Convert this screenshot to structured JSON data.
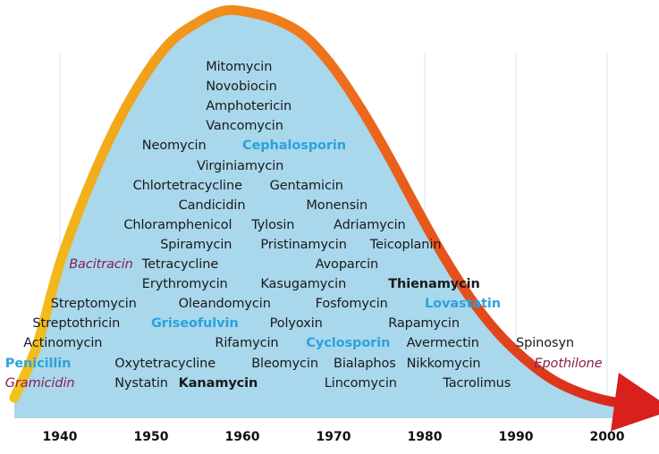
{
  "chart_data": {
    "type": "timeline",
    "title": "",
    "xlabel": "",
    "ylabel": "",
    "x_range": [
      1935,
      2005
    ],
    "x_ticks": [
      "1940",
      "1950",
      "1960",
      "1970",
      "1980",
      "1990",
      "2000"
    ],
    "colors": {
      "area_fill": "#a9d7ec",
      "gridline": "#e3f1f8",
      "curve_start": "#f3c21b",
      "curve_mid": "#f07a1c",
      "curve_end": "#d8201c",
      "blue_label": "#2aa3dc",
      "purple_label": "#8b1d4f"
    },
    "curve": [
      [
        1935.0,
        0.05
      ],
      [
        1937.5,
        0.18
      ],
      [
        1940.0,
        0.38
      ],
      [
        1943.0,
        0.56
      ],
      [
        1946.0,
        0.71
      ],
      [
        1949.0,
        0.83
      ],
      [
        1952.0,
        0.92
      ],
      [
        1955.0,
        0.97
      ],
      [
        1958.0,
        1.0
      ],
      [
        1961.0,
        0.995
      ],
      [
        1964.0,
        0.975
      ],
      [
        1967.0,
        0.935
      ],
      [
        1970.0,
        0.86
      ],
      [
        1973.0,
        0.76
      ],
      [
        1976.0,
        0.645
      ],
      [
        1979.0,
        0.52
      ],
      [
        1982.0,
        0.4
      ],
      [
        1985.0,
        0.295
      ],
      [
        1988.0,
        0.21
      ],
      [
        1991.0,
        0.145
      ],
      [
        1994.0,
        0.095
      ],
      [
        1997.0,
        0.063
      ],
      [
        2000.0,
        0.043
      ],
      [
        2003.5,
        0.032
      ]
    ],
    "antibiotics": [
      {
        "name": "Mitomycin",
        "year": 1956,
        "row": 0,
        "style": "normal"
      },
      {
        "name": "Novobiocin",
        "year": 1956,
        "row": 1,
        "style": "normal"
      },
      {
        "name": "Amphotericin",
        "year": 1956,
        "row": 2,
        "style": "normal"
      },
      {
        "name": "Vancomycin",
        "year": 1956,
        "row": 3,
        "style": "normal"
      },
      {
        "name": "Neomycin",
        "year": 1949,
        "row": 4,
        "style": "normal"
      },
      {
        "name": "Cephalosporin",
        "year": 1960,
        "row": 4,
        "style": "blue"
      },
      {
        "name": "Virginiamycin",
        "year": 1955,
        "row": 5,
        "style": "normal"
      },
      {
        "name": "Chlortetracycline",
        "year": 1948,
        "row": 6,
        "style": "normal"
      },
      {
        "name": "Gentamicin",
        "year": 1963,
        "row": 6,
        "style": "normal"
      },
      {
        "name": "Candicidin",
        "year": 1953,
        "row": 7,
        "style": "normal"
      },
      {
        "name": "Monensin",
        "year": 1967,
        "row": 7,
        "style": "normal"
      },
      {
        "name": "Chloramphenicol",
        "year": 1947,
        "row": 8,
        "style": "normal"
      },
      {
        "name": "Tylosin",
        "year": 1961,
        "row": 8,
        "style": "normal"
      },
      {
        "name": "Adriamycin",
        "year": 1970,
        "row": 8,
        "style": "normal"
      },
      {
        "name": "Spiramycin",
        "year": 1951,
        "row": 9,
        "style": "normal"
      },
      {
        "name": "Pristinamycin",
        "year": 1962,
        "row": 9,
        "style": "normal"
      },
      {
        "name": "Teicoplanin",
        "year": 1974,
        "row": 9,
        "style": "normal"
      },
      {
        "name": "Bacitracin",
        "year": 1941,
        "row": 10,
        "style": "purple"
      },
      {
        "name": "Tetracycline",
        "year": 1949,
        "row": 10,
        "style": "normal"
      },
      {
        "name": "Avoparcin",
        "year": 1968,
        "row": 10,
        "style": "normal"
      },
      {
        "name": "Erythromycin",
        "year": 1949,
        "row": 11,
        "style": "normal"
      },
      {
        "name": "Kasugamycin",
        "year": 1962,
        "row": 11,
        "style": "normal"
      },
      {
        "name": "Thienamycin",
        "year": 1976,
        "row": 11,
        "style": "bold"
      },
      {
        "name": "Streptomycin",
        "year": 1939,
        "row": 12,
        "style": "normal"
      },
      {
        "name": "Oleandomycin",
        "year": 1953,
        "row": 12,
        "style": "normal"
      },
      {
        "name": "Fosfomycin",
        "year": 1968,
        "row": 12,
        "style": "normal"
      },
      {
        "name": "Lovastatin",
        "year": 1980,
        "row": 12,
        "style": "blue"
      },
      {
        "name": "Streptothricin",
        "year": 1937,
        "row": 13,
        "style": "normal"
      },
      {
        "name": "Griseofulvin",
        "year": 1950,
        "row": 13,
        "style": "blue"
      },
      {
        "name": "Polyoxin",
        "year": 1963,
        "row": 13,
        "style": "normal"
      },
      {
        "name": "Rapamycin",
        "year": 1976,
        "row": 13,
        "style": "normal"
      },
      {
        "name": "Actinomycin",
        "year": 1936,
        "row": 14,
        "style": "normal"
      },
      {
        "name": "Rifamycin",
        "year": 1957,
        "row": 14,
        "style": "normal"
      },
      {
        "name": "Cyclosporin",
        "year": 1967,
        "row": 14,
        "style": "blue"
      },
      {
        "name": "Avermectin",
        "year": 1978,
        "row": 14,
        "style": "normal"
      },
      {
        "name": "Spinosyn",
        "year": 1990,
        "row": 14,
        "style": "normal"
      },
      {
        "name": "Penicillin",
        "year": 1934,
        "row": 15,
        "style": "blue"
      },
      {
        "name": "Oxytetracycline",
        "year": 1946,
        "row": 15,
        "style": "normal"
      },
      {
        "name": "Bleomycin",
        "year": 1961,
        "row": 15,
        "style": "normal"
      },
      {
        "name": "Bialaphos",
        "year": 1970,
        "row": 15,
        "style": "normal"
      },
      {
        "name": "Nikkomycin",
        "year": 1978,
        "row": 15,
        "style": "normal"
      },
      {
        "name": "Epothilone",
        "year": 1992,
        "row": 15,
        "style": "purple"
      },
      {
        "name": "Gramicidin",
        "year": 1934,
        "row": 16,
        "style": "purple"
      },
      {
        "name": "Nystatin",
        "year": 1946,
        "row": 16,
        "style": "normal"
      },
      {
        "name": "Kanamycin",
        "year": 1953,
        "row": 16,
        "style": "bold"
      },
      {
        "name": "Lincomycin",
        "year": 1969,
        "row": 16,
        "style": "normal"
      },
      {
        "name": "Tacrolimus",
        "year": 1982,
        "row": 16,
        "style": "normal"
      }
    ]
  }
}
